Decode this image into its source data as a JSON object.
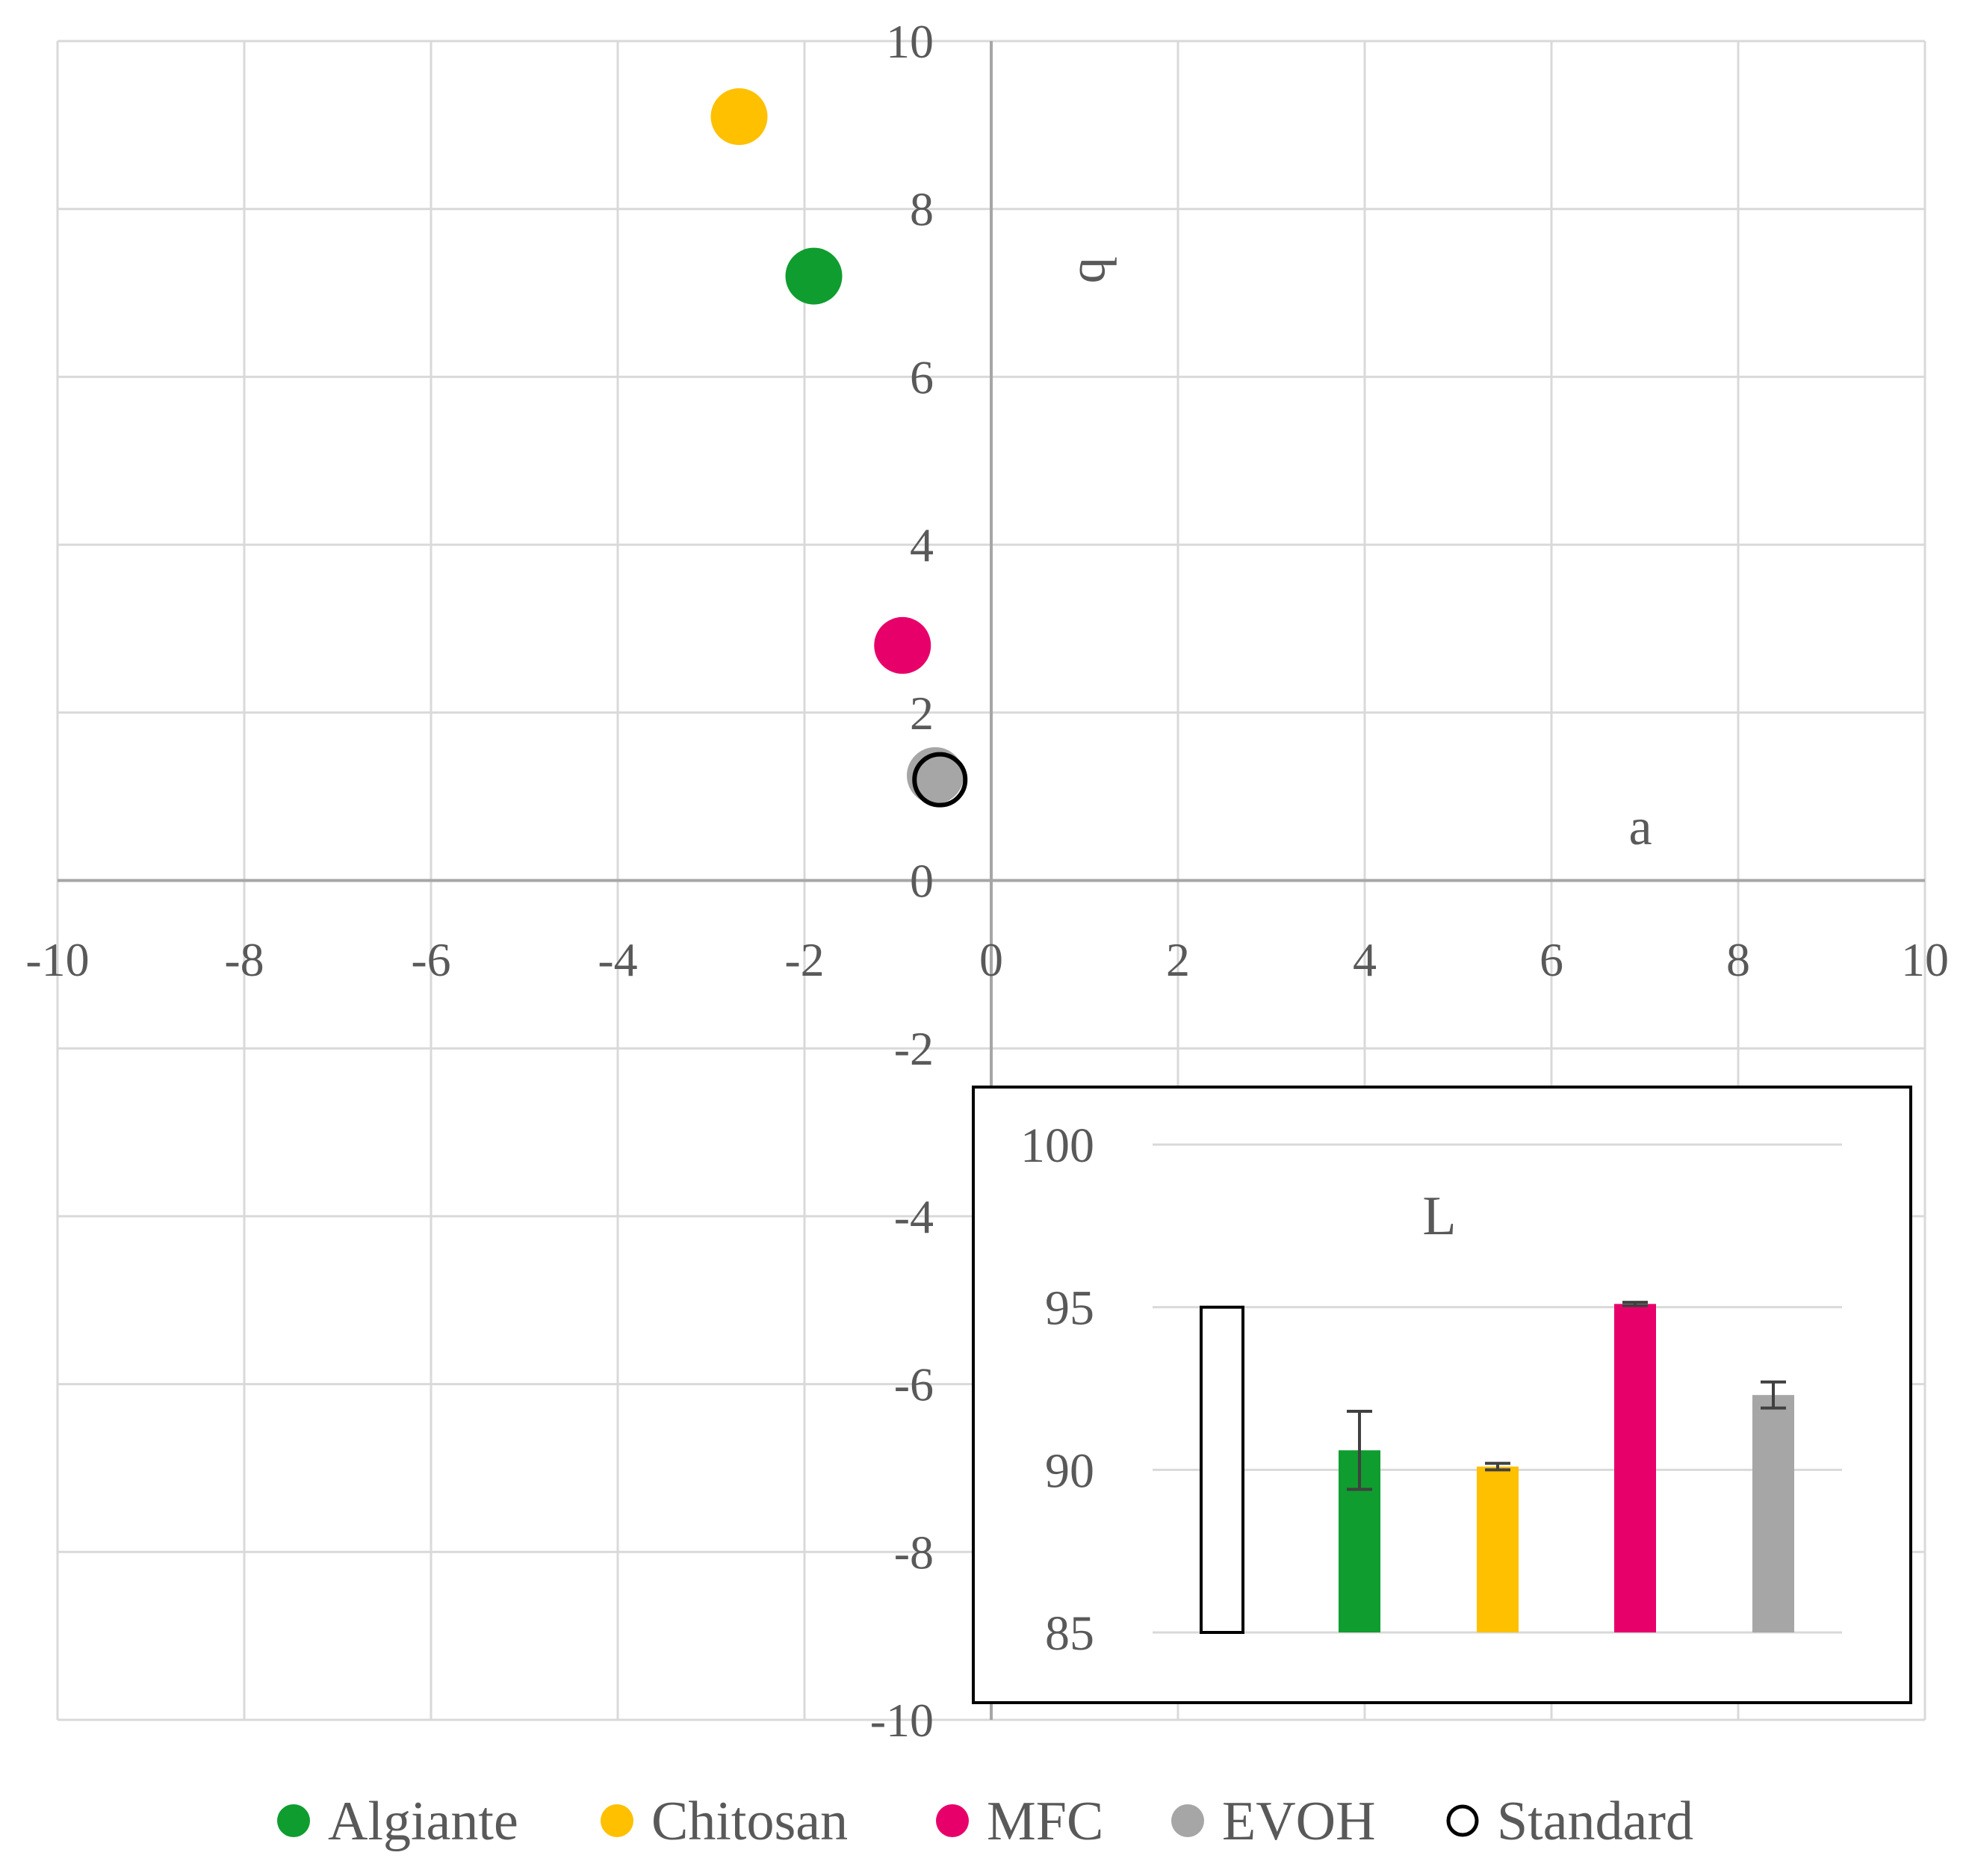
{
  "chart_data": [
    {
      "type": "scatter",
      "title": "",
      "xlabel": "a",
      "ylabel": "b",
      "xlim": [
        -10,
        10
      ],
      "ylim": [
        -10,
        10
      ],
      "x_ticks": [
        "-10",
        "-8",
        "-6",
        "-4",
        "-2",
        "0",
        "2",
        "4",
        "6",
        "8",
        "10"
      ],
      "y_ticks": [
        "-10",
        "-8",
        "-6",
        "-4",
        "-2",
        "0",
        "2",
        "4",
        "6",
        "8",
        "10"
      ],
      "grid": true,
      "legend_position": "bottom",
      "series": [
        {
          "name": "Algiante",
          "color": "#0f9d2f",
          "hollow": false,
          "x": -1.9,
          "y": 7.2
        },
        {
          "name": "Chitosan",
          "color": "#ffc000",
          "hollow": false,
          "x": -2.7,
          "y": 9.1
        },
        {
          "name": "MFC",
          "color": "#e8006a",
          "hollow": false,
          "x": -0.95,
          "y": 2.8
        },
        {
          "name": "EVOH",
          "color": "#a6a6a6",
          "hollow": false,
          "x": -0.6,
          "y": 1.25
        },
        {
          "name": "Standard",
          "color": "#000000",
          "hollow": true,
          "x": -0.55,
          "y": 1.2
        }
      ]
    },
    {
      "type": "bar",
      "title": "L",
      "ylim": [
        85,
        100
      ],
      "y_ticks": [
        "85",
        "90",
        "95",
        "100"
      ],
      "grid": true,
      "categories": [
        "Standard",
        "Algiante",
        "Chitosan",
        "MFC",
        "EVOH"
      ],
      "values": [
        95.0,
        90.6,
        90.1,
        95.1,
        92.3
      ],
      "errors": [
        0,
        1.2,
        0.1,
        0.05,
        0.4
      ],
      "colors": [
        "#ffffff",
        "#0f9d2f",
        "#ffc000",
        "#e8006a",
        "#a6a6a6"
      ],
      "outlined": [
        true,
        false,
        false,
        false,
        false
      ]
    }
  ]
}
